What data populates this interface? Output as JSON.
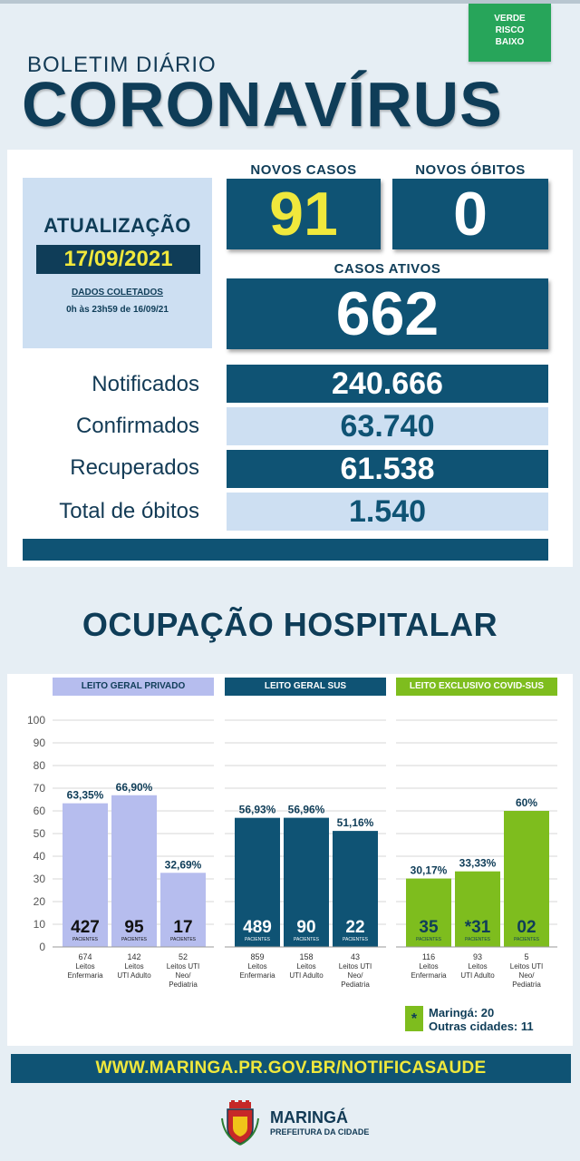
{
  "header": {
    "risk_badge": [
      "VERDE",
      "RISCO",
      "BAIXO"
    ],
    "bulletin_label": "BOLETIM DIÁRIO",
    "title": "CORONAVÍRUS"
  },
  "update": {
    "title": "ATUALIZAÇÃO",
    "date": "17/09/2021",
    "collected_label": "DADOS COLETADOS",
    "collected_range": "0h às 23h59 de 16/09/21"
  },
  "stats": {
    "new_cases_label": "NOVOS CASOS",
    "new_cases": "91",
    "new_deaths_label": "NOVOS ÓBITOS",
    "new_deaths": "0",
    "active_label": "CASOS ATIVOS",
    "active": "662"
  },
  "totals": [
    {
      "label": "Notificados",
      "value": "240.666"
    },
    {
      "label": "Confirmados",
      "value": "63.740"
    },
    {
      "label": "Recuperados",
      "value": "61.538"
    },
    {
      "label": "Total de óbitos",
      "value": "1.540"
    }
  ],
  "section_title": "OCUPAÇÃO HOSPITALAR",
  "chart_data": {
    "type": "bar",
    "ylim": [
      0,
      100
    ],
    "yticks": [
      "0",
      "10",
      "20",
      "30",
      "40",
      "50",
      "60",
      "70",
      "80",
      "90",
      "100"
    ],
    "patients_word": "PACIENTES",
    "groups": [
      {
        "name": "LEITO GERAL PRIVADO",
        "color": "#b6bdee",
        "header_text_color": "#0f3d58",
        "bars": [
          {
            "value": 63.35,
            "label": "63,35%",
            "patients": "427",
            "beds": "674",
            "bed_type": [
              "Leitos",
              "Enfermaria"
            ]
          },
          {
            "value": 66.9,
            "label": "66,90%",
            "patients": "95",
            "beds": "142",
            "bed_type": [
              "Leitos",
              "UTI Adulto"
            ]
          },
          {
            "value": 32.69,
            "label": "32,69%",
            "patients": "17",
            "beds": "52",
            "bed_type": [
              "Leitos UTI",
              "Neo/",
              "Pediatria"
            ]
          }
        ]
      },
      {
        "name": "LEITO GERAL SUS",
        "color": "#0f5374",
        "header_text_color": "#ffffff",
        "bars": [
          {
            "value": 56.93,
            "label": "56,93%",
            "patients": "489",
            "beds": "859",
            "bed_type": [
              "Leitos",
              "Enfermaria"
            ]
          },
          {
            "value": 56.96,
            "label": "56,96%",
            "patients": "90",
            "beds": "158",
            "bed_type": [
              "Leitos",
              "UTI Adulto"
            ]
          },
          {
            "value": 51.16,
            "label": "51,16%",
            "patients": "22",
            "beds": "43",
            "bed_type": [
              "Leitos UTI",
              "Neo/",
              "Pediatria"
            ]
          }
        ]
      },
      {
        "name": "LEITO EXCLUSIVO COVID-SUS",
        "color": "#7ebd1e",
        "header_text_color": "#ffffff",
        "bars": [
          {
            "value": 30.17,
            "label": "30,17%",
            "patients": "35",
            "beds": "116",
            "bed_type": [
              "Leitos",
              "Enfermaria"
            ]
          },
          {
            "value": 33.33,
            "label": "33,33%",
            "patients": "*31",
            "beds": "93",
            "bed_type": [
              "Leitos",
              "UTI Adulto"
            ]
          },
          {
            "value": 60.0,
            "label": "60%",
            "patients": "02",
            "beds": "5",
            "bed_type": [
              "Leitos UTI",
              "Neo/",
              "Pediatria"
            ]
          }
        ]
      }
    ]
  },
  "legend": {
    "marker": "*",
    "line1": "Maringá: 20",
    "line2": "Outras cidades: 11"
  },
  "footer": {
    "website": "WWW.MARINGA.PR.GOV.BR/NOTIFICASAUDE",
    "city": "MARINGÁ",
    "city_sub": "PREFEITURA DA CIDADE"
  }
}
